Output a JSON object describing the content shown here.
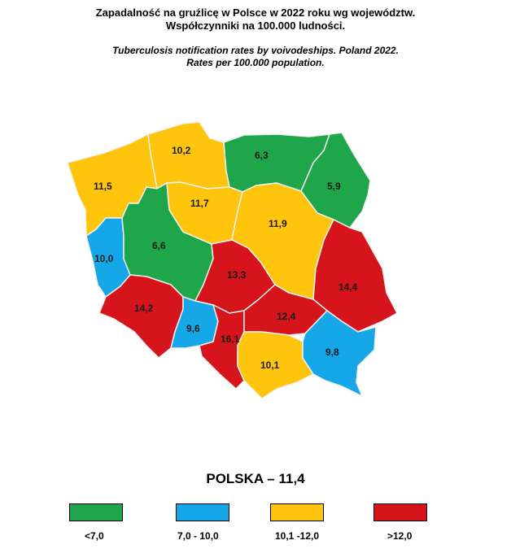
{
  "title_pl_line1": "Zapadalność na gruźlicę w Polsce w 2022 roku wg województw.",
  "title_pl_line2": "Współczynniki na 100.000 ludności.",
  "title_en_line1": "Tuberculosis notification rates by voivodeships. Poland  2022.",
  "title_en_line2": "Rates per 100.000 population.",
  "national_rate": "POLSKA – 11,4",
  "colors": {
    "green": "#1fa64a",
    "blue": "#16a7e8",
    "yellow": "#ffc40c",
    "red": "#d5141b"
  },
  "regions": [
    {
      "id": "zachodniopomorskie",
      "value": "11,5",
      "color": "yellow"
    },
    {
      "id": "pomorskie",
      "value": "10,2",
      "color": "yellow"
    },
    {
      "id": "warminsko-mazurskie",
      "value": "6,3",
      "color": "green"
    },
    {
      "id": "podlaskie",
      "value": "5,9",
      "color": "green"
    },
    {
      "id": "lubuskie",
      "value": "10,0",
      "color": "blue"
    },
    {
      "id": "wielkopolskie",
      "value": "6,6",
      "color": "green"
    },
    {
      "id": "kujawsko-pomorskie",
      "value": "11,7",
      "color": "yellow"
    },
    {
      "id": "mazowieckie",
      "value": "11,9",
      "color": "yellow"
    },
    {
      "id": "lodzkie",
      "value": "13,3",
      "color": "red"
    },
    {
      "id": "lubelskie",
      "value": "14,4",
      "color": "red"
    },
    {
      "id": "dolnoslaskie",
      "value": "14,2",
      "color": "red"
    },
    {
      "id": "opolskie",
      "value": "9,6",
      "color": "blue"
    },
    {
      "id": "slaskie",
      "value": "16,1",
      "color": "red"
    },
    {
      "id": "swietokrzyskie",
      "value": "12,4",
      "color": "red"
    },
    {
      "id": "malopolskie",
      "value": "10,1",
      "color": "yellow"
    },
    {
      "id": "podkarpackie",
      "value": "9,8",
      "color": "blue"
    }
  ],
  "legend": [
    {
      "label": "<7,0",
      "color": "green"
    },
    {
      "label": "7,0 - 10,0",
      "color": "blue"
    },
    {
      "label": "10,1 -12,0",
      "color": "yellow"
    },
    {
      "label": ">12,0",
      "color": "red"
    }
  ]
}
